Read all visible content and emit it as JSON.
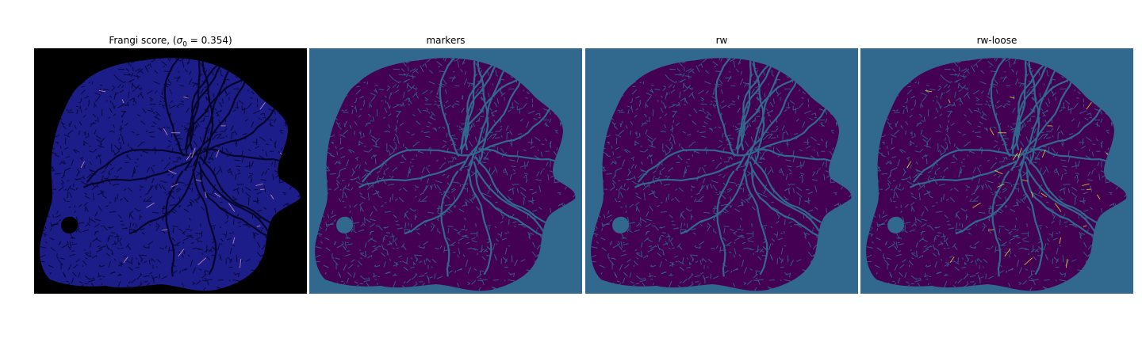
{
  "panels": [
    {
      "id": "frangi",
      "title": "Frangi score, (",
      "title_symbol": "σ",
      "title_subscript": "0",
      "title_suffix": " = 0.354)",
      "background_color": "#000000",
      "tissue_color": "#1d1d8a",
      "vessel_color": "#05052a",
      "highlight_color": "#e0a0b0"
    },
    {
      "id": "markers",
      "title": "markers",
      "background_color": "#31688e",
      "tissue_color": "#440154",
      "vessel_color": "#31688e"
    },
    {
      "id": "rw",
      "title": "rw",
      "background_color": "#31688e",
      "tissue_color": "#440154",
      "vessel_color": "#31688e"
    },
    {
      "id": "rw-loose",
      "title": "rw-loose",
      "background_color": "#31688e",
      "tissue_color": "#440154",
      "vessel_color": "#31688e",
      "highlight_color": "#fde725"
    }
  ]
}
